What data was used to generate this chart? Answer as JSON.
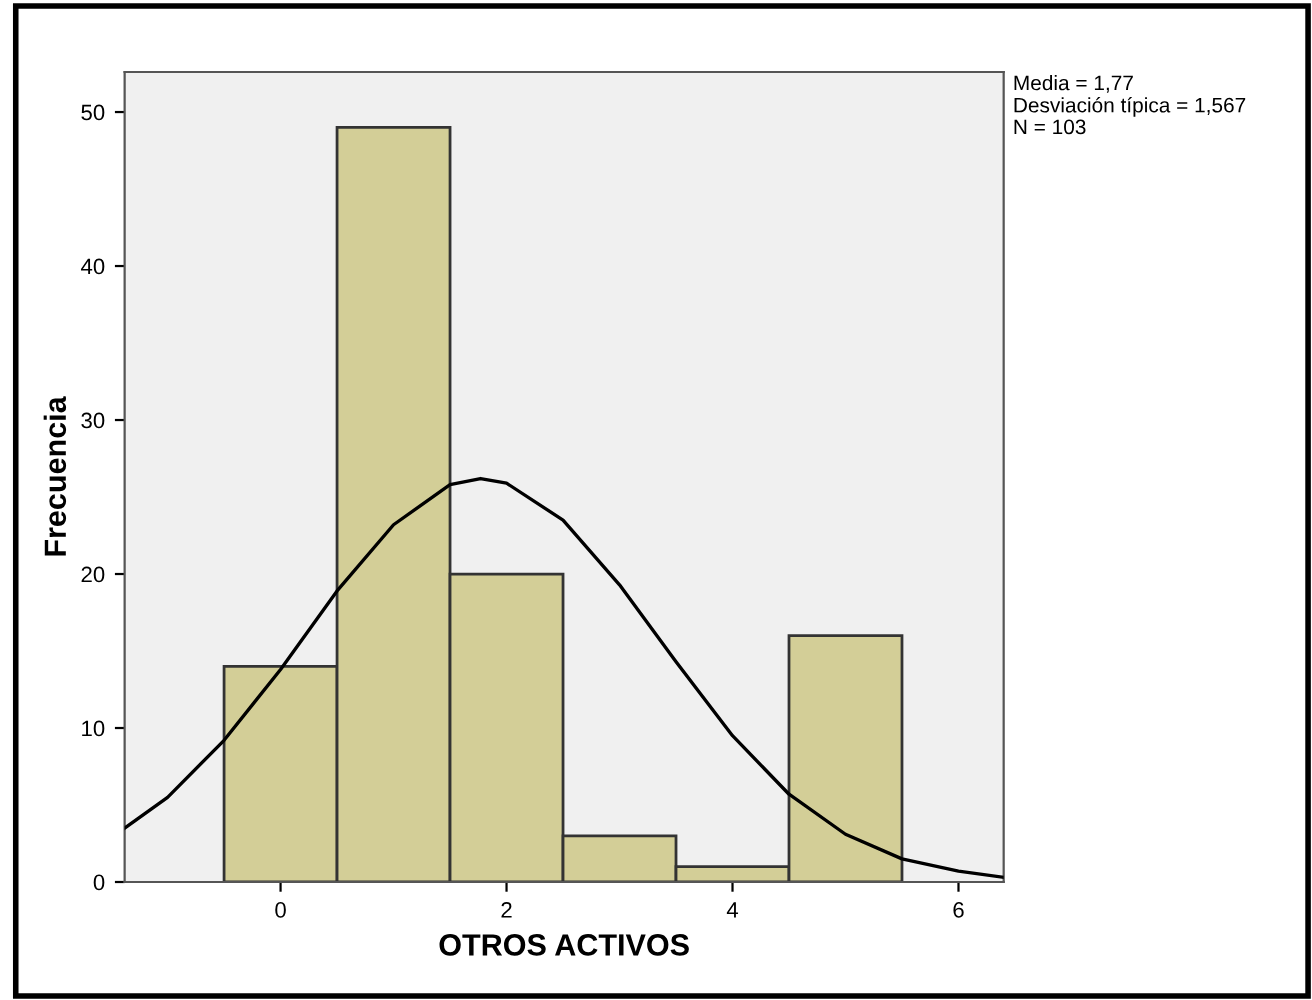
{
  "chart_data": {
    "type": "histogram",
    "xlabel": "OTROS ACTIVOS",
    "ylabel": "Frecuencia",
    "bins": [
      -0.5,
      0.5,
      1.5,
      2.5,
      3.5,
      4.5,
      5.5
    ],
    "values": [
      14,
      49,
      20,
      3,
      1,
      16
    ],
    "color": "#d3ce97",
    "series": [
      {
        "type": "line",
        "color": "#000000",
        "x": [
          -1.38,
          -1,
          -0.5,
          0,
          0.5,
          1,
          1.5,
          1.77,
          2,
          2.5,
          3,
          3.5,
          4,
          4.5,
          5,
          5.5,
          6,
          6.4
        ],
        "values": [
          3.5,
          5.5,
          9.2,
          13.8,
          18.9,
          23.2,
          25.8,
          26.2,
          25.9,
          23.5,
          19.3,
          14.3,
          9.5,
          5.7,
          3.1,
          1.5,
          0.7,
          0.3
        ]
      }
    ],
    "xlim": [
      -1.38,
      6.4
    ],
    "xticks": [
      0,
      2,
      4,
      6
    ],
    "ylim": [
      0,
      52.6
    ],
    "yticks": [
      0,
      10,
      20,
      30,
      40,
      50
    ],
    "grid": false,
    "legend": false,
    "annotations": [
      "Media = 1,77",
      "Desviación típica = 1,567",
      "N = 103"
    ]
  }
}
